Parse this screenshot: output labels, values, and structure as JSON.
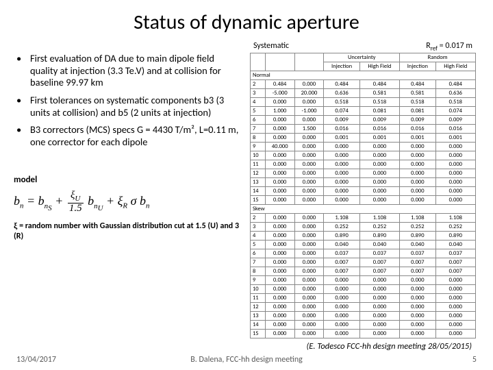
{
  "title": "Status of dynamic aperture",
  "header": {
    "systematic": "Systematic",
    "rref_html": "R<sub>ref</sub> = 0.017 m"
  },
  "bullets": [
    "First evaluation of DA due to main dipole field quality at injection (3.3 Te.V) and at collision for baseline 99.97 km",
    "First tolerances on systematic components b3 (3 units at collision) and b5 (2 units at injection)",
    "B3 correctors (MCS) specs G = 4430 T/m², L=0.11 m, one corrector for each dipole"
  ],
  "model_label": "model",
  "note_html": "<span class=\"xi\">ξ</span> = random number with Gaussian distribution cut at 1.5 (U) and 3 (R)",
  "citation": "(E. Todesco FCC-hh design meeting 28/05/2015)",
  "footer": {
    "date": "13/04/2017",
    "center": "B. Dalena, FCC-hh design meeting",
    "page": "5"
  },
  "table": {
    "super1": [
      "",
      "Uncertainty",
      "Random"
    ],
    "super2": [
      "",
      "Injection",
      "High Field",
      "Injection",
      "High Field"
    ],
    "normal_label": "Normal",
    "skew_label": "Skew",
    "normal_rows": [
      [
        "2",
        "0.484",
        "0.000",
        "0.484",
        "0.484",
        "0.484",
        "0.484"
      ],
      [
        "3",
        "-5.000",
        "20.000",
        "0.636",
        "0.581",
        "0.581",
        "0.636"
      ],
      [
        "4",
        "0.000",
        "0.000",
        "0.518",
        "0.518",
        "0.518",
        "0.518"
      ],
      [
        "5",
        "1.000",
        "-1.000",
        "0.074",
        "0.081",
        "0.081",
        "0.074"
      ],
      [
        "6",
        "0.000",
        "0.000",
        "0.009",
        "0.009",
        "0.009",
        "0.009"
      ],
      [
        "7",
        "0.000",
        "1.500",
        "0.016",
        "0.016",
        "0.016",
        "0.016"
      ],
      [
        "8",
        "0.000",
        "0.000",
        "0.001",
        "0.001",
        "0.001",
        "0.001"
      ],
      [
        "9",
        "40.000",
        "0.000",
        "0.000",
        "0.000",
        "0.000",
        "0.000"
      ],
      [
        "10",
        "0.000",
        "0.000",
        "0.000",
        "0.000",
        "0.000",
        "0.000"
      ],
      [
        "11",
        "0.000",
        "0.000",
        "0.000",
        "0.000",
        "0.000",
        "0.000"
      ],
      [
        "12",
        "0.000",
        "0.000",
        "0.000",
        "0.000",
        "0.000",
        "0.000"
      ],
      [
        "13",
        "0.000",
        "0.000",
        "0.000",
        "0.000",
        "0.000",
        "0.000"
      ],
      [
        "14",
        "0.000",
        "0.000",
        "0.000",
        "0.000",
        "0.000",
        "0.000"
      ],
      [
        "15",
        "0.000",
        "0.000",
        "0.000",
        "0.000",
        "0.000",
        "0.000"
      ]
    ],
    "skew_rows": [
      [
        "2",
        "0.000",
        "0.000",
        "1.108",
        "1.108",
        "1.108",
        "1.108"
      ],
      [
        "3",
        "0.000",
        "0.000",
        "0.252",
        "0.252",
        "0.252",
        "0.252"
      ],
      [
        "4",
        "0.000",
        "0.000",
        "0.890",
        "0.890",
        "0.890",
        "0.890"
      ],
      [
        "5",
        "0.000",
        "0.000",
        "0.040",
        "0.040",
        "0.040",
        "0.040"
      ],
      [
        "6",
        "0.000",
        "0.000",
        "0.037",
        "0.037",
        "0.037",
        "0.037"
      ],
      [
        "7",
        "0.000",
        "0.000",
        "0.007",
        "0.007",
        "0.007",
        "0.007"
      ],
      [
        "8",
        "0.000",
        "0.000",
        "0.007",
        "0.007",
        "0.007",
        "0.007"
      ],
      [
        "9",
        "0.000",
        "0.000",
        "0.000",
        "0.000",
        "0.000",
        "0.000"
      ],
      [
        "10",
        "0.000",
        "0.000",
        "0.000",
        "0.000",
        "0.000",
        "0.000"
      ],
      [
        "11",
        "0.000",
        "0.000",
        "0.000",
        "0.000",
        "0.000",
        "0.000"
      ],
      [
        "12",
        "0.000",
        "0.000",
        "0.000",
        "0.000",
        "0.000",
        "0.000"
      ],
      [
        "13",
        "0.000",
        "0.000",
        "0.000",
        "0.000",
        "0.000",
        "0.000"
      ],
      [
        "14",
        "0.000",
        "0.000",
        "0.000",
        "0.000",
        "0.000",
        "0.000"
      ],
      [
        "15",
        "0.000",
        "0.000",
        "0.000",
        "0.000",
        "0.000",
        "0.000"
      ]
    ]
  }
}
